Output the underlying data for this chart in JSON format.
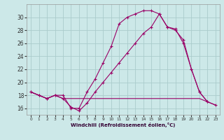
{
  "bg_color": "#cce8e8",
  "grid_color": "#aacccc",
  "line_color": "#990066",
  "xlim": [
    -0.5,
    23.5
  ],
  "ylim": [
    15.0,
    32.0
  ],
  "xticks": [
    0,
    1,
    2,
    3,
    4,
    5,
    6,
    7,
    8,
    9,
    10,
    11,
    12,
    13,
    14,
    15,
    16,
    17,
    18,
    19,
    20,
    21,
    22,
    23
  ],
  "yticks": [
    16,
    18,
    20,
    22,
    24,
    26,
    28,
    30
  ],
  "xlabel": "Windchill (Refroidissement éolien,°C)",
  "curve1_x": [
    0,
    1,
    2,
    3,
    4,
    5,
    6,
    7,
    8,
    9,
    10,
    11,
    12,
    13,
    14,
    15,
    16,
    17,
    18,
    19,
    20,
    21,
    22
  ],
  "curve1_y": [
    18.5,
    18.0,
    17.5,
    18.0,
    18.0,
    16.0,
    16.0,
    18.5,
    20.5,
    23.0,
    25.5,
    29.0,
    30.0,
    30.5,
    31.0,
    31.0,
    30.5,
    28.5,
    28.0,
    26.5,
    22.0,
    18.5,
    17.0
  ],
  "curve2_x": [
    0,
    1,
    2,
    3,
    4,
    5,
    6,
    7,
    8,
    9,
    10,
    11,
    12,
    13,
    14,
    15,
    16,
    17,
    18,
    19,
    20,
    21,
    22,
    23
  ],
  "curve2_y": [
    18.5,
    18.0,
    17.5,
    18.0,
    17.5,
    16.2,
    15.6,
    16.8,
    18.5,
    20.0,
    21.5,
    23.0,
    24.5,
    26.0,
    27.5,
    28.5,
    30.5,
    28.5,
    28.2,
    26.0,
    22.0,
    18.5,
    17.0,
    16.5
  ],
  "curve3_x": [
    0,
    1,
    2,
    3,
    4,
    5,
    6,
    7,
    8,
    9,
    10,
    11,
    12,
    13,
    14,
    15,
    16,
    17,
    18,
    19,
    20,
    21,
    22,
    23
  ],
  "curve3_y": [
    18.5,
    18.0,
    17.5,
    18.0,
    17.5,
    17.5,
    17.5,
    17.5,
    17.5,
    17.5,
    17.5,
    17.5,
    17.5,
    17.5,
    17.5,
    17.5,
    17.5,
    17.5,
    17.5,
    17.5,
    17.5,
    17.5,
    17.0,
    16.5
  ]
}
